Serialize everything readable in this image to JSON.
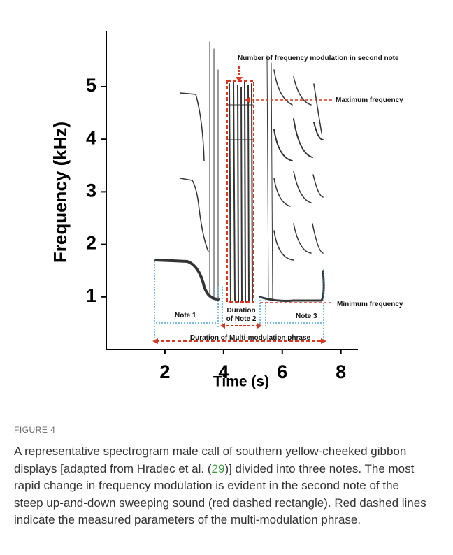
{
  "figure": {
    "y_axis": {
      "label": "Frequency (kHz)",
      "ylim": [
        0,
        6.05
      ],
      "ticks": [
        1,
        2,
        3,
        4,
        5
      ]
    },
    "x_axis": {
      "label": "Time (s)",
      "xlim": [
        0,
        8.58
      ],
      "ticks": [
        2,
        4,
        6,
        8
      ]
    },
    "annotations": {
      "modulation_count": "Number of frequency modulation in second note",
      "max_freq": "Maximum frequency",
      "min_freq": "Minimum frequency",
      "note1": "Note 1",
      "note2_line1": "Duration",
      "note2_line2": "of Note 2",
      "note3": "Note 3",
      "phrase": "Duration of Multi-modulation phrase"
    },
    "caption": {
      "label": "FIGURE 4",
      "text_before": "A representative spectrogram male call of southern yellow-cheeked gibbon displays [adapted from Hradec et al. (",
      "ref": "29",
      "text_after": ")] divided into three notes. The most rapid change in frequency modulation is evident in the second note of the steep up-and-down sweeping sound (red dashed rectangle). Red dashed lines indicate the measured parameters of the multi-modulation phrase."
    }
  }
}
